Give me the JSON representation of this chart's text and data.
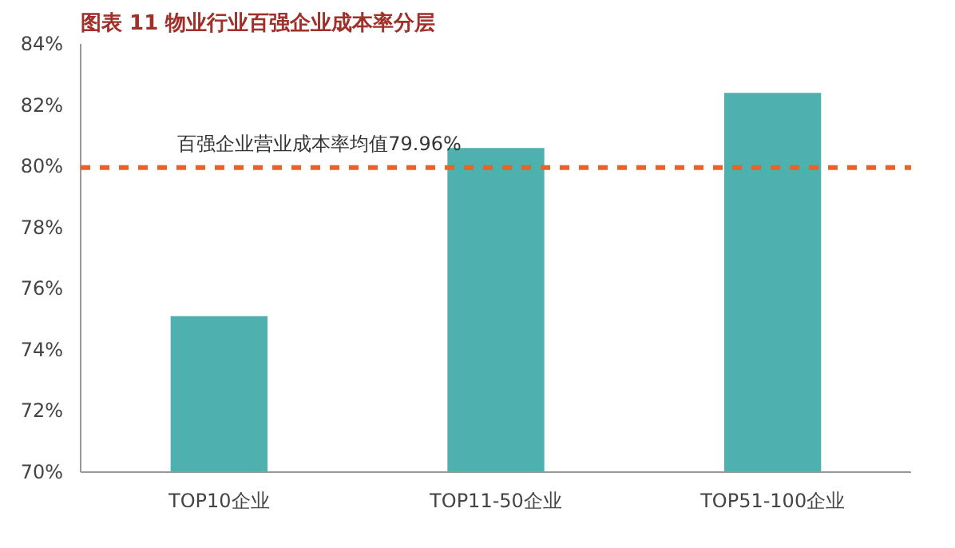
{
  "chart_data": {
    "type": "bar",
    "title": "图表 11 物业行业百强企业成本率分层",
    "categories": [
      "TOP10企业",
      "TOP11-50企业",
      "TOP51-100企业"
    ],
    "values": [
      75.1,
      80.6,
      82.4
    ],
    "color": "#4fb0b0",
    "ylim": [
      70,
      84
    ],
    "yticks": [
      {
        "value": 70,
        "label": "70%"
      },
      {
        "value": 72,
        "label": "72%"
      },
      {
        "value": 74,
        "label": "74%"
      },
      {
        "value": 76,
        "label": "76%"
      },
      {
        "value": 78,
        "label": "78%"
      },
      {
        "value": 80,
        "label": "80%"
      },
      {
        "value": 82,
        "label": "82%"
      },
      {
        "value": 84,
        "label": "84%"
      }
    ],
    "ref_lines": [
      {
        "axis": "y",
        "value": 79.96,
        "label": "百强企业营业成本率均值79.96%",
        "color": "#e8622a",
        "line_style": "dashed"
      }
    ],
    "grid": false
  }
}
